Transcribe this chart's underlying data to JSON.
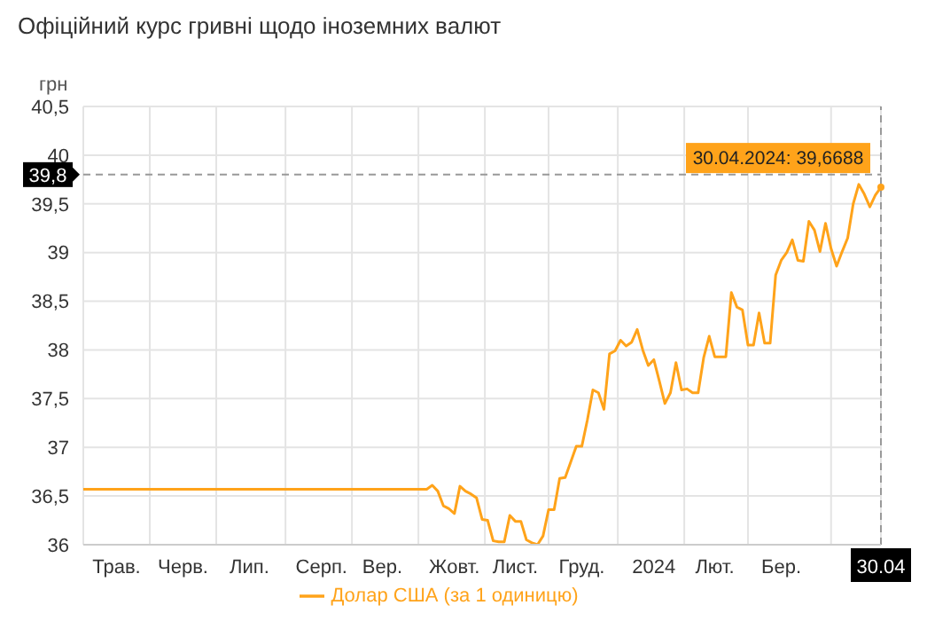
{
  "chart_data": {
    "type": "line",
    "title": "Офіційний курс гривні щодо іноземних валют",
    "ylabel": "грн",
    "categories": [
      null,
      null,
      null,
      null,
      null,
      null,
      "Трав.",
      null,
      null,
      null,
      null,
      null,
      null,
      null,
      null,
      null,
      null,
      null,
      "Черв.",
      null,
      null,
      null,
      null,
      null,
      null,
      null,
      null,
      null,
      null,
      null,
      "Лип.",
      null,
      null,
      null,
      null,
      null,
      null,
      null,
      null,
      null,
      null,
      null,
      null,
      "Серп.",
      null,
      null,
      null,
      null,
      null,
      null,
      null,
      null,
      null,
      null,
      "Вер.",
      null,
      null,
      null,
      null,
      null,
      null,
      null,
      null,
      null,
      null,
      null,
      null,
      "Жовт.",
      null,
      null,
      null,
      null,
      null,
      null,
      null,
      null,
      null,
      null,
      "Лист.",
      null,
      null,
      null,
      null,
      null,
      null,
      null,
      null,
      null,
      null,
      null,
      "Груд.",
      null,
      null,
      null,
      null,
      null,
      null,
      null,
      null,
      null,
      null,
      null,
      null,
      "2024",
      null,
      null,
      null,
      null,
      null,
      null,
      null,
      null,
      null,
      null,
      "Лют.",
      null,
      null,
      null,
      null,
      null,
      null,
      null,
      null,
      null,
      null,
      null,
      "Бер.",
      null,
      null,
      null,
      null,
      null,
      null,
      null,
      null,
      null,
      null,
      null,
      null,
      null,
      null,
      null,
      null,
      null,
      "30.04"
    ],
    "series": [
      {
        "name": "Долар США (за 1 одиницю)",
        "color": "#ffa31a",
        "values": [
          36.57,
          36.57,
          36.57,
          36.57,
          36.57,
          36.57,
          36.57,
          36.57,
          36.57,
          36.57,
          36.57,
          36.57,
          36.57,
          36.57,
          36.57,
          36.57,
          36.57,
          36.57,
          36.57,
          36.57,
          36.57,
          36.57,
          36.57,
          36.57,
          36.57,
          36.57,
          36.57,
          36.57,
          36.57,
          36.57,
          36.57,
          36.57,
          36.57,
          36.57,
          36.57,
          36.57,
          36.57,
          36.57,
          36.57,
          36.57,
          36.57,
          36.57,
          36.57,
          36.57,
          36.57,
          36.57,
          36.57,
          36.57,
          36.57,
          36.57,
          36.57,
          36.57,
          36.57,
          36.57,
          36.57,
          36.57,
          36.57,
          36.57,
          36.57,
          36.57,
          36.57,
          36.57,
          36.57,
          36.61,
          36.55,
          36.4,
          36.37,
          36.32,
          36.6,
          36.55,
          36.52,
          36.48,
          36.26,
          36.25,
          36.04,
          36.03,
          36.03,
          36.3,
          36.24,
          36.24,
          36.05,
          36.02,
          36.0,
          36.09,
          36.36,
          36.36,
          36.68,
          36.69,
          36.85,
          37.01,
          37.01,
          37.28,
          37.59,
          37.56,
          37.39,
          37.96,
          37.99,
          38.1,
          38.04,
          38.08,
          38.21,
          38.0,
          37.84,
          37.9,
          37.68,
          37.45,
          37.56,
          37.87,
          37.59,
          37.6,
          37.56,
          37.56,
          37.92,
          38.14,
          37.93,
          37.93,
          37.93,
          38.59,
          38.44,
          38.41,
          38.05,
          38.05,
          38.38,
          38.07,
          38.07,
          38.77,
          38.92,
          39.0,
          39.13,
          38.92,
          38.91,
          39.32,
          39.23,
          39.01,
          39.3,
          39.04,
          38.86,
          39.01,
          39.15,
          39.5,
          39.7,
          39.6,
          39.47,
          39.59,
          39.67
        ]
      }
    ],
    "ylim": [
      36,
      40.5
    ],
    "yticks": [
      36,
      {
        "value": 36.5,
        "label": "36,5"
      },
      37,
      {
        "value": 37.5,
        "label": "37,5"
      },
      38,
      {
        "value": 38.5,
        "label": "38,5"
      },
      39,
      {
        "value": 39.5,
        "label": "39,5"
      },
      40,
      {
        "value": 40.5,
        "label": "40,5"
      }
    ],
    "ref_lines": [
      {
        "axis": "y",
        "value": 39.8,
        "label": "39,8",
        "color": "#999999",
        "line_style": "dashed"
      },
      {
        "axis": "x",
        "value": "30.04",
        "color": "#999999",
        "line_style": "dashed"
      }
    ],
    "annotations": [
      {
        "text": "30.04.2024: 39,6688",
        "x": "30.04",
        "y": 39.67
      }
    ],
    "grid": true,
    "legend": "bottom",
    "marker": "none",
    "line_style": "solid"
  }
}
